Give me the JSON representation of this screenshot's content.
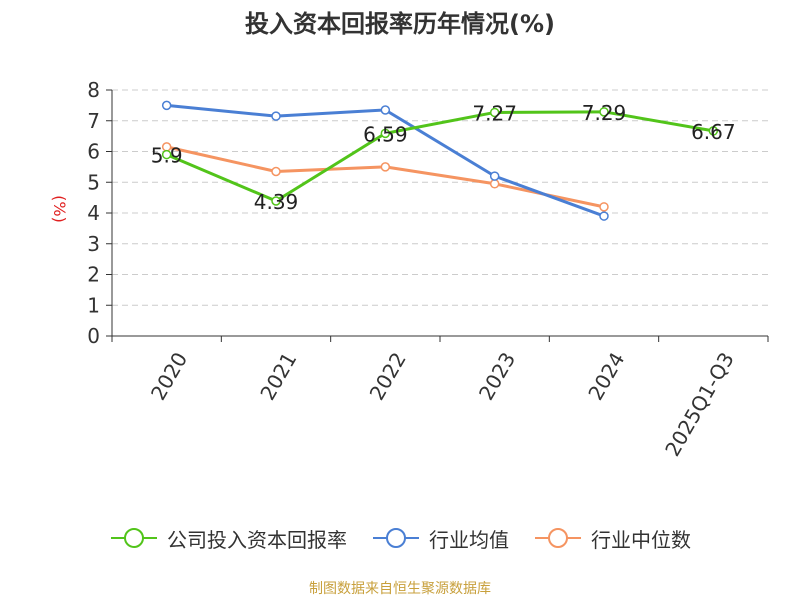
{
  "chart_data": {
    "type": "line",
    "title": "投入资本回报率历年情况(%)",
    "ylabel": "(%)",
    "categories": [
      "2020",
      "2021",
      "2022",
      "2023",
      "2024",
      "2025Q1-Q3"
    ],
    "ylim": [
      0,
      8
    ],
    "yticks": [
      0,
      1,
      2,
      3,
      4,
      5,
      6,
      7,
      8
    ],
    "grid": true,
    "legend_position": "bottom",
    "series": [
      {
        "name": "公司投入资本回报率",
        "color": "#52c41a",
        "values": [
          5.9,
          4.39,
          6.59,
          7.27,
          7.29,
          6.67
        ],
        "data_labels": [
          "5.9",
          "4.39",
          "6.59",
          "7.27",
          "7.29",
          "6.67"
        ]
      },
      {
        "name": "行业均值",
        "color": "#4a7fd4",
        "values": [
          7.5,
          7.15,
          7.35,
          5.2,
          3.9,
          null
        ]
      },
      {
        "name": "行业中位数",
        "color": "#f59461",
        "values": [
          6.15,
          5.35,
          5.5,
          4.95,
          4.2,
          null
        ]
      }
    ]
  },
  "source_text": "制图数据来自恒生聚源数据库"
}
